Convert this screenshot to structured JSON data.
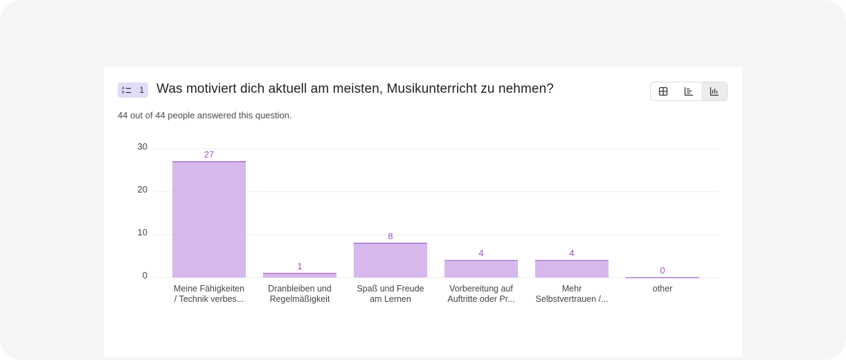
{
  "question": {
    "number": "1",
    "title": "Was motiviert dich aktuell am meisten, Musikunterricht zu nehmen?",
    "answered_text": "44 out of 44 people answered this question.",
    "type_icon": "multiple-choice-icon"
  },
  "view_toggle": {
    "options": [
      "table-view-icon",
      "horizontal-bar-icon",
      "vertical-bar-icon"
    ],
    "active": "vertical-bar-icon"
  },
  "colors": {
    "bar_fill": "#d6b8ec",
    "bar_top": "#9a5fc4",
    "value_label": "#9a4fcf",
    "grid": "#ececec",
    "axis_text": "#444444"
  },
  "chart_data": {
    "type": "bar",
    "categories": [
      [
        "Meine Fähigkeiten",
        "/ Technik verbes..."
      ],
      [
        "Dranbleiben und",
        "Regelmäßigkeit"
      ],
      [
        "Spaß und Freude",
        "am Lernen"
      ],
      [
        "Vorbereitung auf",
        "Auftritte oder Pr..."
      ],
      [
        "Mehr",
        "Selbstvertrauen /..."
      ],
      [
        "other"
      ]
    ],
    "values": [
      27,
      1,
      8,
      4,
      4,
      0
    ],
    "value_labels": [
      "27",
      "1",
      "8",
      "4",
      "4",
      "0"
    ],
    "y_ticks": [
      "0",
      "10",
      "20",
      "30"
    ],
    "ylim": [
      0,
      30
    ],
    "grid": true
  }
}
